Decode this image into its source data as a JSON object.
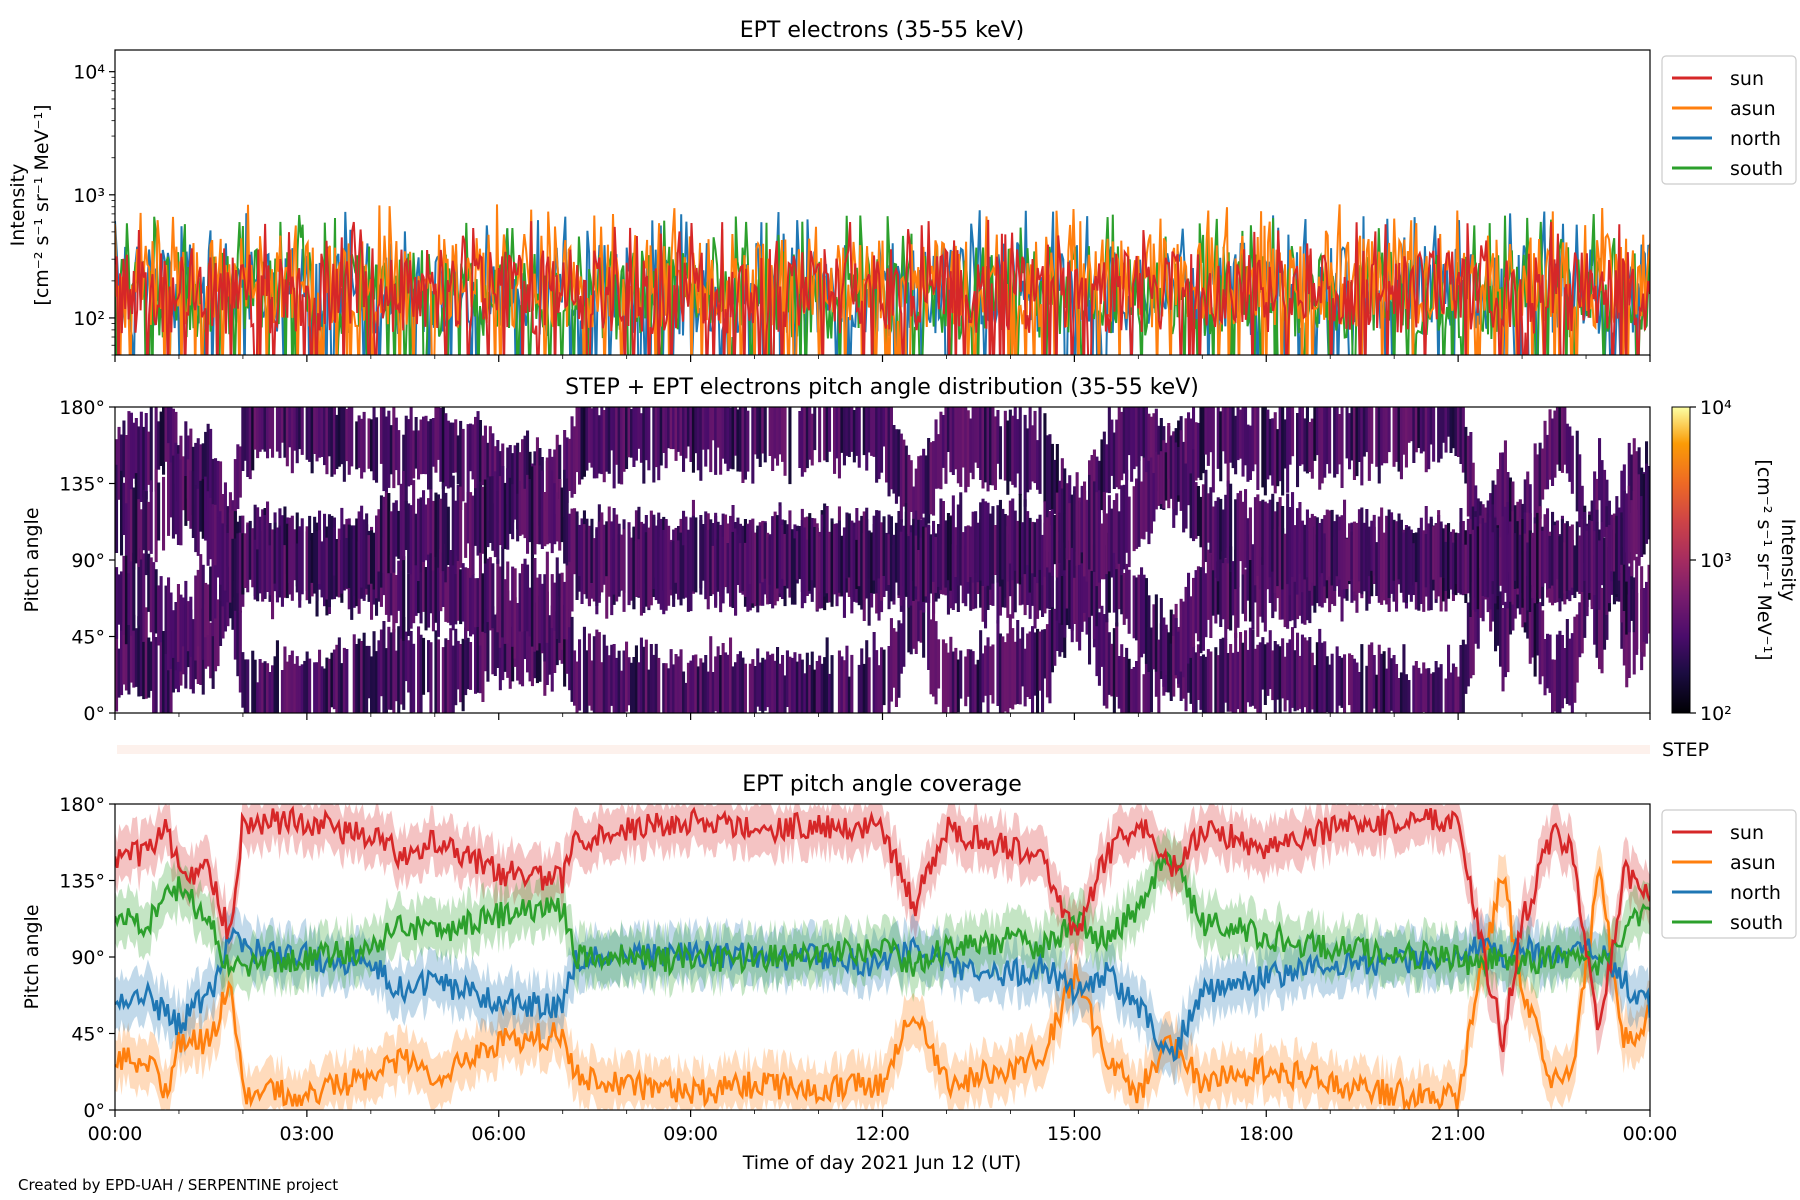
{
  "chart_data": [
    {
      "panel": "top",
      "type": "line",
      "title": "EPT electrons (35-55 keV)",
      "ylabel_lines": [
        "Intensity",
        "[cm⁻² s⁻¹ sr⁻¹ MeV⁻¹]"
      ],
      "yscale": "log",
      "ylim": [
        50,
        15000
      ],
      "yticks": [
        {
          "v": 100,
          "label": "10²"
        },
        {
          "v": 1000,
          "label": "10³"
        },
        {
          "v": 10000,
          "label": "10⁴"
        }
      ],
      "x_hours": [
        0,
        24
      ],
      "legend_position": "upper-right-outside",
      "series": [
        {
          "name": "north",
          "color": "#1f77b4",
          "base": 170,
          "spread": 0.55,
          "peaks": 500
        },
        {
          "name": "south",
          "color": "#2ca02c",
          "base": 160,
          "spread": 0.55,
          "peaks": 480
        },
        {
          "name": "asun",
          "color": "#ff7f0e",
          "base": 200,
          "spread": 0.55,
          "peaks": 560
        },
        {
          "name": "sun",
          "color": "#d62728",
          "base": 165,
          "spread": 0.5,
          "peaks": 420
        }
      ],
      "legend_order": [
        "sun",
        "asun",
        "north",
        "south"
      ]
    },
    {
      "panel": "middle",
      "type": "heatmap",
      "title": "STEP + EPT electrons pitch angle distribution (35-55 keV)",
      "ylabel": "Pitch angle",
      "ylim": [
        0,
        180
      ],
      "yticks": [
        {
          "v": 0,
          "label": "0°"
        },
        {
          "v": 45,
          "label": "45°"
        },
        {
          "v": 90,
          "label": "90°"
        },
        {
          "v": 135,
          "label": "135°"
        },
        {
          "v": 180,
          "label": "180°"
        }
      ],
      "x_hours": [
        0,
        24
      ],
      "colorbar": {
        "label_lines": [
          "Intensity",
          "[cm⁻² s⁻¹ sr⁻¹ MeV⁻¹]"
        ],
        "range": [
          100,
          10000
        ],
        "scale": "log",
        "colormap": "inferno",
        "ticks": [
          {
            "v": 100,
            "label": "10²"
          },
          {
            "v": 1000,
            "label": "10³"
          },
          {
            "v": 10000,
            "label": "10⁴"
          }
        ]
      },
      "typical_intensity": [
        150,
        500
      ]
    },
    {
      "panel": "step-strip",
      "type": "heatmap",
      "label": "STEP"
    },
    {
      "panel": "bottom",
      "type": "line",
      "title": "EPT pitch angle coverage",
      "ylabel": "Pitch angle",
      "ylim": [
        0,
        180
      ],
      "yticks": [
        {
          "v": 0,
          "label": "0°"
        },
        {
          "v": 45,
          "label": "45°"
        },
        {
          "v": 90,
          "label": "90°"
        },
        {
          "v": 135,
          "label": "135°"
        },
        {
          "v": 180,
          "label": "180°"
        }
      ],
      "xlabel": "Time of day 2021 Jun 12 (UT)",
      "xticks": [
        "00:00",
        "03:00",
        "06:00",
        "09:00",
        "12:00",
        "15:00",
        "18:00",
        "21:00",
        "00:00"
      ],
      "x_hours": [
        0,
        24
      ],
      "legend_position": "upper-right-outside",
      "band_halfwidth": 15,
      "series": [
        {
          "name": "sun",
          "color": "#d62728",
          "x": [
            0,
            0.5,
            0.8,
            1.0,
            1.5,
            1.8,
            2.0,
            3.0,
            4.0,
            4.5,
            5.0,
            6.0,
            7.0,
            7.2,
            8.0,
            9.0,
            10.0,
            11.0,
            12.0,
            12.5,
            13.0,
            14.0,
            14.5,
            15.0,
            15.5,
            16.0,
            16.5,
            17.0,
            18.0,
            19.0,
            20.0,
            21.0,
            21.3,
            21.7,
            22.0,
            22.5,
            22.8,
            23.2,
            23.6,
            24.0
          ],
          "y": [
            150,
            150,
            170,
            140,
            140,
            100,
            170,
            170,
            160,
            150,
            160,
            140,
            135,
            160,
            165,
            170,
            165,
            168,
            165,
            120,
            165,
            155,
            150,
            100,
            150,
            170,
            140,
            165,
            155,
            165,
            170,
            172,
            110,
            40,
            110,
            165,
            150,
            40,
            140,
            125
          ]
        },
        {
          "name": "asun",
          "color": "#ff7f0e",
          "x": [
            0,
            0.5,
            0.8,
            1.0,
            1.5,
            1.8,
            2.0,
            3.0,
            4.0,
            4.5,
            5.0,
            6.0,
            7.0,
            7.2,
            8.0,
            9.0,
            10.0,
            11.0,
            12.0,
            12.5,
            13.0,
            14.0,
            14.5,
            15.0,
            15.5,
            16.0,
            16.5,
            17.0,
            18.0,
            19.0,
            20.0,
            21.0,
            21.3,
            21.7,
            22.0,
            22.5,
            22.8,
            23.2,
            23.6,
            24.0
          ],
          "y": [
            30,
            30,
            10,
            40,
            40,
            80,
            10,
            10,
            20,
            30,
            20,
            40,
            45,
            20,
            15,
            10,
            15,
            12,
            15,
            60,
            15,
            25,
            30,
            80,
            30,
            10,
            40,
            15,
            25,
            15,
            10,
            8,
            70,
            140,
            70,
            15,
            30,
            140,
            40,
            55
          ]
        },
        {
          "name": "north",
          "color": "#1f77b4",
          "x": [
            0,
            0.5,
            0.8,
            1.0,
            1.5,
            1.8,
            2.0,
            3.0,
            4.0,
            4.5,
            5.0,
            6.0,
            7.0,
            7.2,
            8.0,
            9.0,
            10.0,
            11.0,
            12.0,
            12.5,
            13.0,
            14.0,
            14.5,
            15.0,
            15.5,
            16.0,
            16.5,
            17.0,
            18.0,
            19.0,
            20.0,
            21.0,
            21.3,
            21.7,
            22.0,
            22.5,
            22.8,
            23.2,
            23.6,
            24.0
          ],
          "y": [
            65,
            70,
            55,
            50,
            70,
            100,
            95,
            90,
            85,
            70,
            75,
            65,
            60,
            90,
            90,
            92,
            90,
            90,
            85,
            95,
            85,
            80,
            85,
            70,
            80,
            60,
            30,
            70,
            78,
            85,
            88,
            90,
            95,
            90,
            95,
            88,
            90,
            95,
            75,
            60
          ]
        },
        {
          "name": "south",
          "color": "#2ca02c",
          "x": [
            0,
            0.5,
            0.8,
            1.0,
            1.5,
            1.8,
            2.0,
            3.0,
            4.0,
            4.5,
            5.0,
            6.0,
            7.0,
            7.2,
            8.0,
            9.0,
            10.0,
            11.0,
            12.0,
            12.5,
            13.0,
            14.0,
            14.5,
            15.0,
            15.5,
            16.0,
            16.5,
            17.0,
            18.0,
            19.0,
            20.0,
            21.0,
            21.3,
            21.7,
            22.0,
            22.5,
            22.8,
            23.2,
            23.6,
            24.0
          ],
          "y": [
            115,
            110,
            125,
            130,
            110,
            80,
            85,
            90,
            95,
            110,
            105,
            115,
            120,
            90,
            90,
            88,
            90,
            90,
            95,
            85,
            95,
            100,
            95,
            110,
            100,
            120,
            150,
            110,
            102,
            95,
            92,
            90,
            85,
            90,
            85,
            92,
            90,
            85,
            105,
            120
          ]
        }
      ],
      "legend_order": [
        "sun",
        "asun",
        "north",
        "south"
      ]
    }
  ],
  "footer": {
    "credit": "Created by EPD-UAH / SERPENTINE project"
  }
}
